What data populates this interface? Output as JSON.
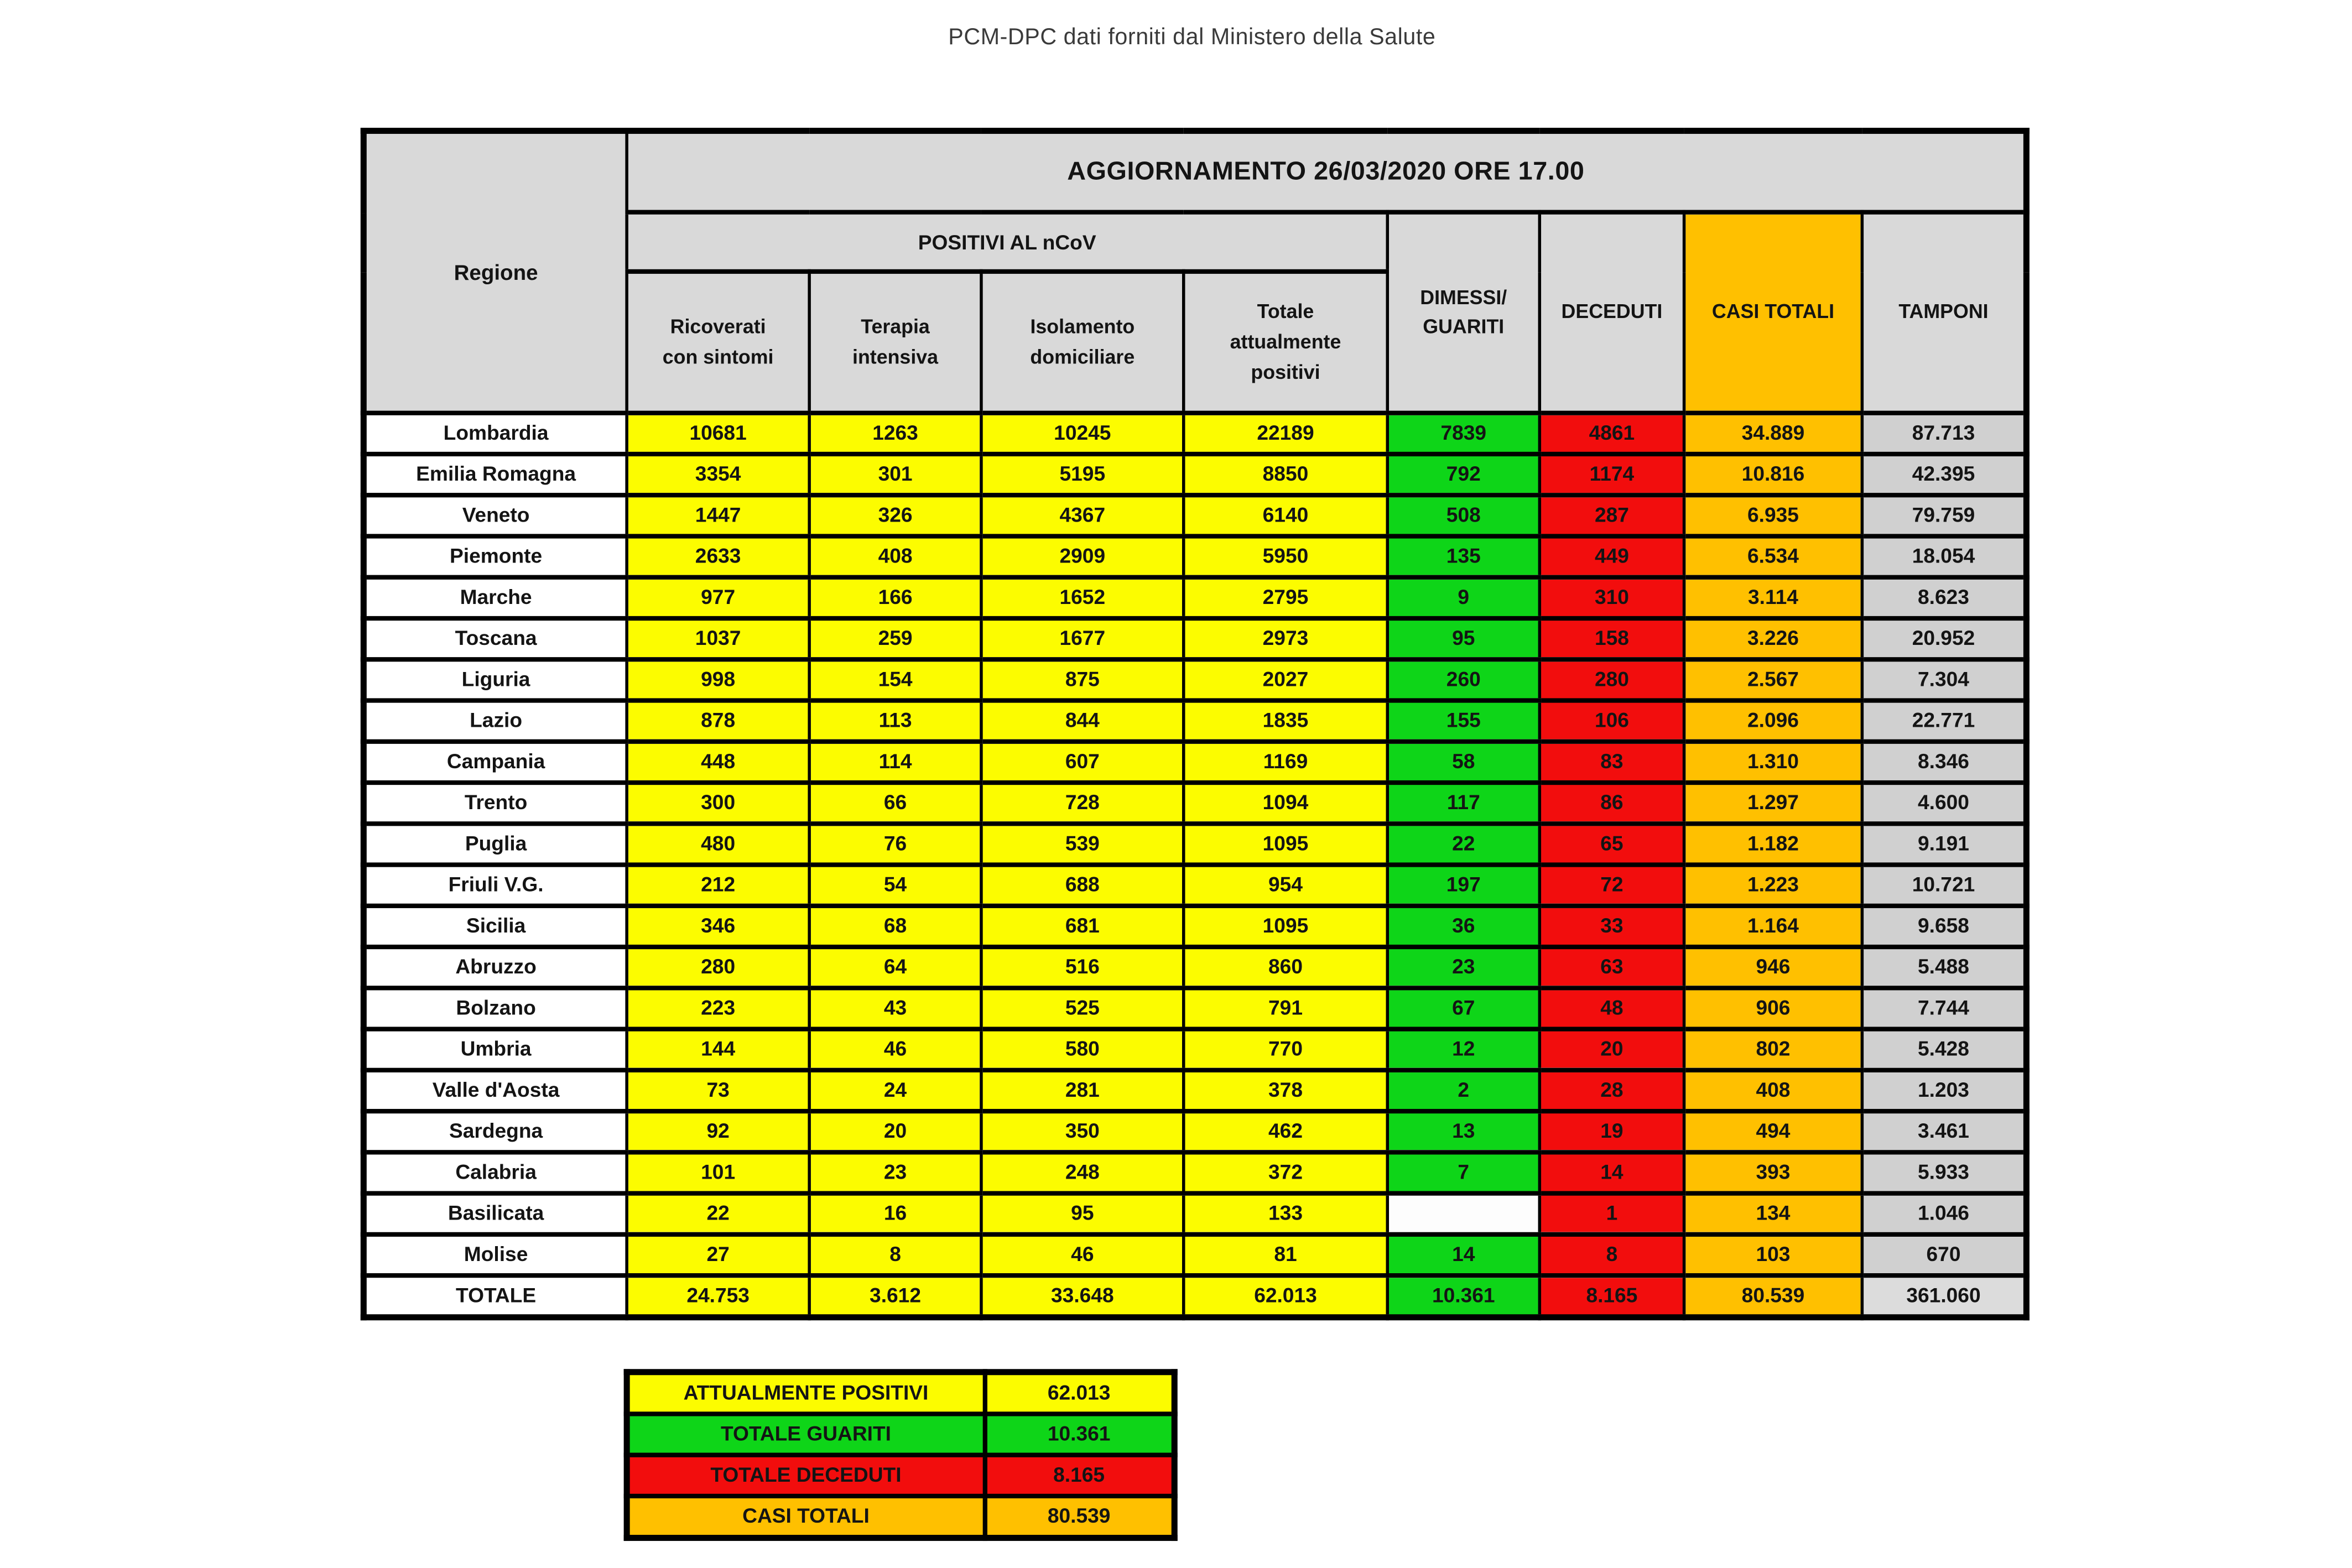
{
  "title": "PCM-DPC dati forniti dal Ministero della Salute",
  "table": {
    "regione_header": "Regione",
    "update_banner": "AGGIORNAMENTO 26/03/2020 ORE 17.00",
    "group_header": "POSITIVI AL nCoV",
    "col_display": [
      "Ricoverati\ncon sintomi",
      "Terapia\nintensiva",
      "Isolamento\ndomiciliare",
      "Totale\nattualmente\npositivi",
      "DIMESSI/\nGUARITI",
      "DECEDUTI",
      "CASI TOTALI",
      "TAMPONI"
    ]
  },
  "chart_data": {
    "type": "table",
    "title": "AGGIORNAMENTO 26/03/2020 ORE 17.00",
    "note": "Values are shown exactly as displayed; dot is the Italian thousands separator. Empty string = blank cell.",
    "columns": [
      "Regione",
      "Ricoverati con sintomi",
      "Terapia intensiva",
      "Isolamento domiciliare",
      "Totale attualmente positivi",
      "DIMESSI/ GUARITI",
      "DECEDUTI",
      "CASI TOTALI",
      "TAMPONI"
    ],
    "rows": [
      [
        "Lombardia",
        "10681",
        "1263",
        "10245",
        "22189",
        "7839",
        "4861",
        "34.889",
        "87.713"
      ],
      [
        "Emilia Romagna",
        "3354",
        "301",
        "5195",
        "8850",
        "792",
        "1174",
        "10.816",
        "42.395"
      ],
      [
        "Veneto",
        "1447",
        "326",
        "4367",
        "6140",
        "508",
        "287",
        "6.935",
        "79.759"
      ],
      [
        "Piemonte",
        "2633",
        "408",
        "2909",
        "5950",
        "135",
        "449",
        "6.534",
        "18.054"
      ],
      [
        "Marche",
        "977",
        "166",
        "1652",
        "2795",
        "9",
        "310",
        "3.114",
        "8.623"
      ],
      [
        "Toscana",
        "1037",
        "259",
        "1677",
        "2973",
        "95",
        "158",
        "3.226",
        "20.952"
      ],
      [
        "Liguria",
        "998",
        "154",
        "875",
        "2027",
        "260",
        "280",
        "2.567",
        "7.304"
      ],
      [
        "Lazio",
        "878",
        "113",
        "844",
        "1835",
        "155",
        "106",
        "2.096",
        "22.771"
      ],
      [
        "Campania",
        "448",
        "114",
        "607",
        "1169",
        "58",
        "83",
        "1.310",
        "8.346"
      ],
      [
        "Trento",
        "300",
        "66",
        "728",
        "1094",
        "117",
        "86",
        "1.297",
        "4.600"
      ],
      [
        "Puglia",
        "480",
        "76",
        "539",
        "1095",
        "22",
        "65",
        "1.182",
        "9.191"
      ],
      [
        "Friuli V.G.",
        "212",
        "54",
        "688",
        "954",
        "197",
        "72",
        "1.223",
        "10.721"
      ],
      [
        "Sicilia",
        "346",
        "68",
        "681",
        "1095",
        "36",
        "33",
        "1.164",
        "9.658"
      ],
      [
        "Abruzzo",
        "280",
        "64",
        "516",
        "860",
        "23",
        "63",
        "946",
        "5.488"
      ],
      [
        "Bolzano",
        "223",
        "43",
        "525",
        "791",
        "67",
        "48",
        "906",
        "7.744"
      ],
      [
        "Umbria",
        "144",
        "46",
        "580",
        "770",
        "12",
        "20",
        "802",
        "5.428"
      ],
      [
        "Valle d'Aosta",
        "73",
        "24",
        "281",
        "378",
        "2",
        "28",
        "408",
        "1.203"
      ],
      [
        "Sardegna",
        "92",
        "20",
        "350",
        "462",
        "13",
        "19",
        "494",
        "3.461"
      ],
      [
        "Calabria",
        "101",
        "23",
        "248",
        "372",
        "7",
        "14",
        "393",
        "5.933"
      ],
      [
        "Basilicata",
        "22",
        "16",
        "95",
        "133",
        "",
        "1",
        "134",
        "1.046"
      ],
      [
        "Molise",
        "27",
        "8",
        "46",
        "81",
        "14",
        "8",
        "103",
        "670"
      ]
    ],
    "totals": [
      "TOTALE",
      "24.753",
      "3.612",
      "33.648",
      "62.013",
      "10.361",
      "8.165",
      "80.539",
      "361.060"
    ]
  },
  "summary": [
    {
      "label": "ATTUALMENTE POSITIVI",
      "value": "62.013",
      "color": "#fcfc00"
    },
    {
      "label": "TOTALE GUARITI",
      "value": "10.361",
      "color": "#0ed518"
    },
    {
      "label": "TOTALE DECEDUTI",
      "value": "8.165",
      "color": "#f20d0d"
    },
    {
      "label": "CASI TOTALI",
      "value": "80.539",
      "color": "#ffc000"
    }
  ],
  "colors": {
    "header_gray": "#d9d9d9",
    "positivi_yellow": "#fcfc00",
    "guariti_green": "#0ed518",
    "deceduti_red": "#f20d0d",
    "casi_totali_orange": "#ffc000",
    "tamponi_gray": "#d0d0d0",
    "border_black": "#000000"
  }
}
